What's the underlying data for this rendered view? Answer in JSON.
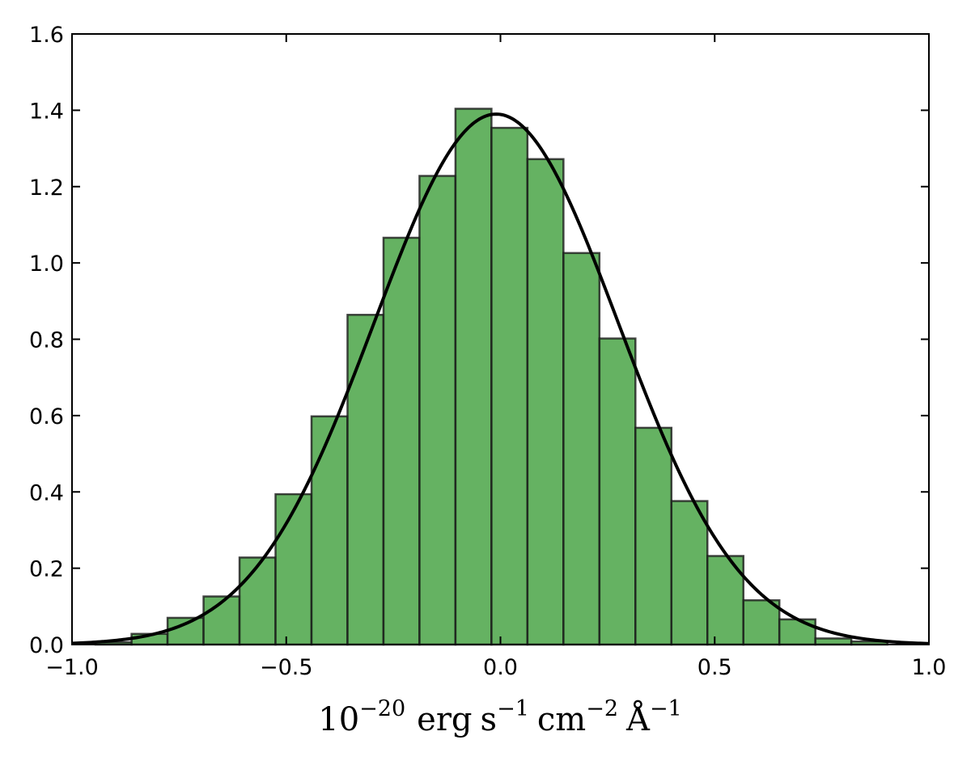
{
  "chart_data": {
    "type": "bar",
    "title": "",
    "xlabel": {
      "base": "10",
      "base_exp": "−20",
      "erg": "erg",
      "s": "s",
      "s_exp": "−1",
      "cm": "cm",
      "cm_exp": "−2",
      "angstrom": "Å",
      "angstrom_exp": "−1"
    },
    "ylabel": "",
    "xlim": [
      -1.0,
      1.0
    ],
    "ylim": [
      0.0,
      1.6
    ],
    "grid": false,
    "xticks": [
      -1.0,
      -0.5,
      0.0,
      0.5,
      1.0
    ],
    "xtick_labels": [
      "−1.0",
      "−0.5",
      "0.0",
      "0.5",
      "1.0"
    ],
    "yticks": [
      0.0,
      0.2,
      0.4,
      0.6,
      0.8,
      1.0,
      1.2,
      1.4,
      1.6
    ],
    "ytick_labels": [
      "0.0",
      "0.2",
      "0.4",
      "0.6",
      "0.8",
      "1.0",
      "1.2",
      "1.4",
      "1.6"
    ],
    "bar_color": "#4aa447",
    "curve_color": "#000000",
    "histogram": {
      "bin_edges": [
        -0.945,
        -0.861,
        -0.777,
        -0.693,
        -0.609,
        -0.525,
        -0.441,
        -0.357,
        -0.273,
        -0.189,
        -0.105,
        -0.021,
        0.063,
        0.147,
        0.231,
        0.315,
        0.399,
        0.483,
        0.567,
        0.651,
        0.735,
        0.819,
        0.903
      ],
      "values": [
        0.006,
        0.028,
        0.07,
        0.126,
        0.228,
        0.394,
        0.598,
        0.864,
        1.066,
        1.228,
        1.404,
        1.354,
        1.272,
        1.026,
        0.802,
        0.568,
        0.376,
        0.232,
        0.116,
        0.066,
        0.016,
        0.008
      ]
    },
    "fit_curve": {
      "type": "gaussian",
      "amplitude": 1.39,
      "mean": -0.01,
      "sigma": 0.285
    }
  }
}
